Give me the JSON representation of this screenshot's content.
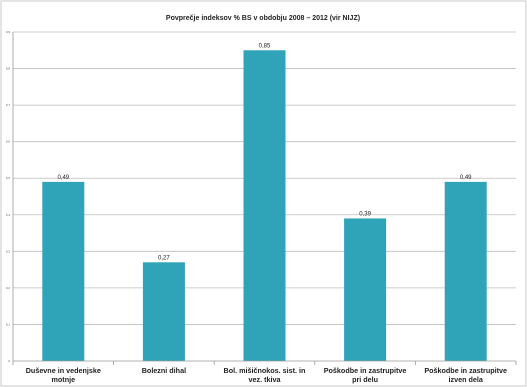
{
  "chart_data": {
    "type": "bar",
    "title": "Povprečje indeksov % BS v obdobju 2008 – 2012 (vir NIJZ)",
    "categories": [
      [
        "Duševne in vedenjske",
        "motnje"
      ],
      [
        "Bolezni dihal"
      ],
      [
        "Bol. mišičnokos. sist. in",
        "vez. tkiva"
      ],
      [
        "Poškodbe in zastrupitve",
        "pri delu"
      ],
      [
        "Poškodbe in zastrupitve",
        "izven dela"
      ]
    ],
    "values": [
      0.49,
      0.27,
      0.85,
      0.39,
      0.49
    ],
    "value_labels": [
      "0,49",
      "0,27",
      "0,85",
      "0,39",
      "0,49"
    ],
    "ylim": [
      0,
      0.9
    ],
    "yticks": [
      "0",
      "0,1",
      "0,2",
      "0,3",
      "0,4",
      "0,5",
      "0,6",
      "0,7",
      "0,8",
      "0,9"
    ],
    "grid": true,
    "bar_color": "#2fa3b8",
    "legend": false
  }
}
